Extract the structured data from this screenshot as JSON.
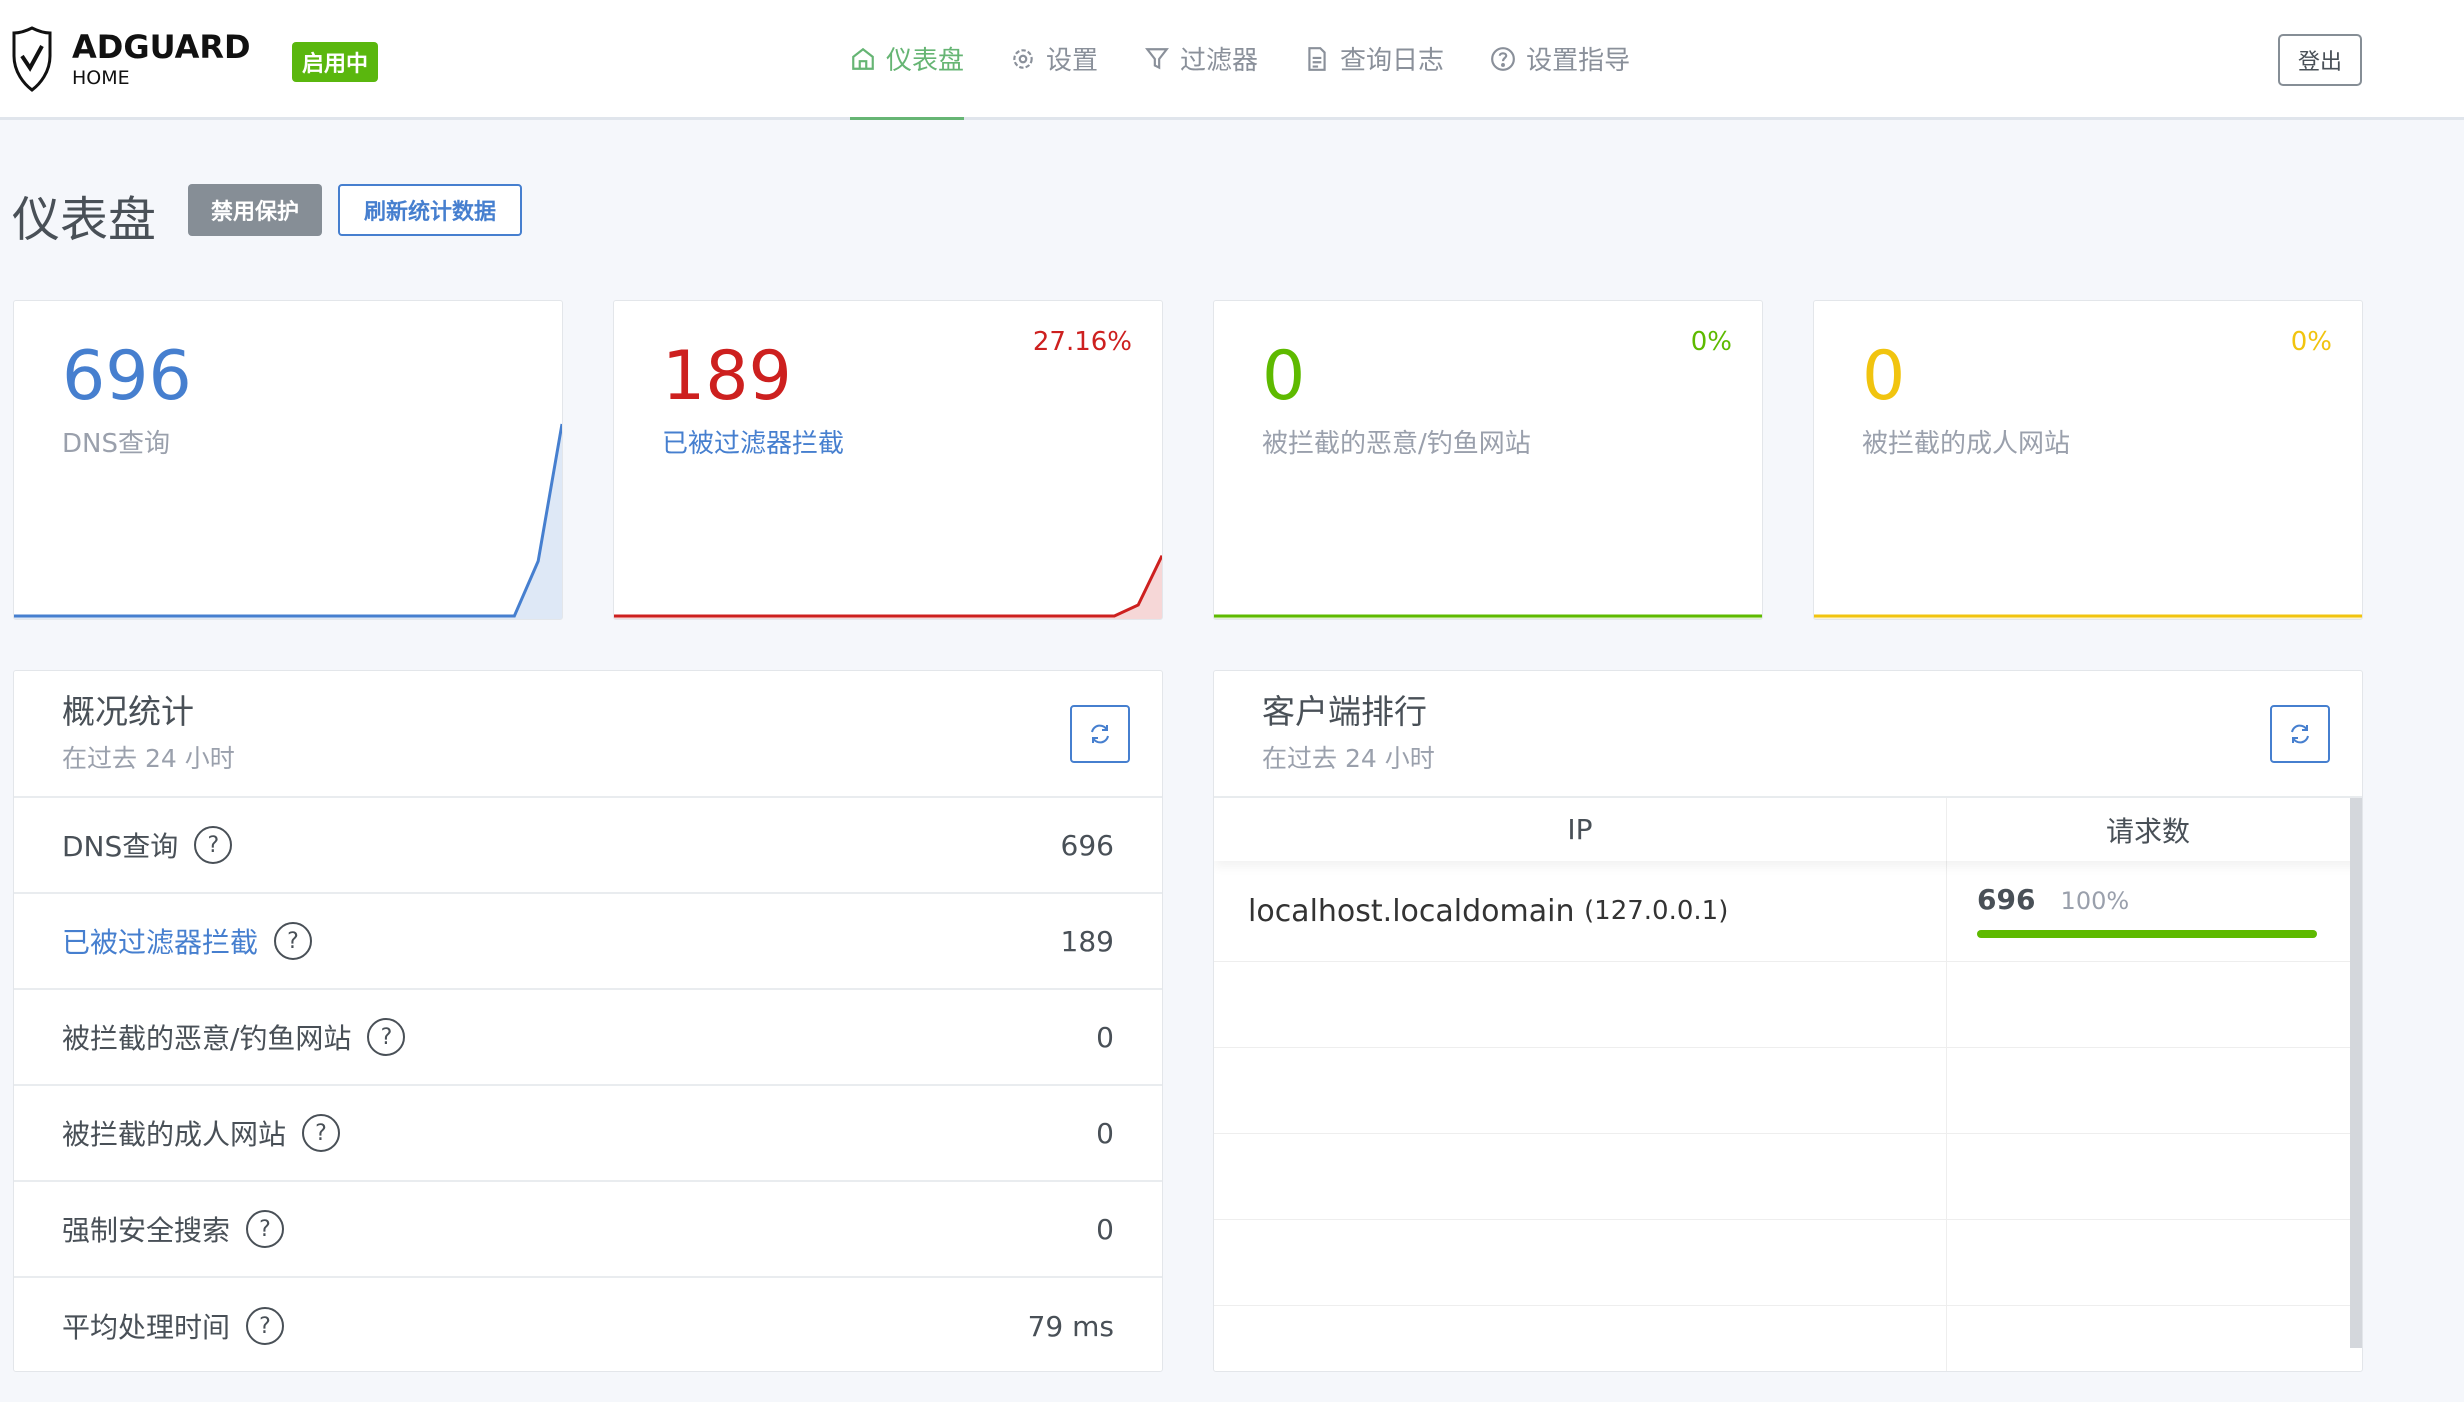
{
  "header": {
    "brand": "ADGUARD",
    "brand_sub": "HOME",
    "status_badge": "启用中",
    "logout": "登出",
    "nav": [
      {
        "label": "仪表盘",
        "icon": "home-icon"
      },
      {
        "label": "设置",
        "icon": "gear-icon"
      },
      {
        "label": "过滤器",
        "icon": "filter-icon"
      },
      {
        "label": "查询日志",
        "icon": "document-icon"
      },
      {
        "label": "设置指导",
        "icon": "help-circle-icon"
      }
    ]
  },
  "page": {
    "title": "仪表盘",
    "disable_protection": "禁用保护",
    "refresh_stats": "刷新统计数据"
  },
  "cards": [
    {
      "value": "696",
      "label": "DNS查询",
      "percent": "",
      "color": "#467fcf",
      "spark": [
        0,
        0,
        0,
        0,
        0,
        0,
        0,
        0,
        0,
        0,
        0,
        0,
        0,
        0,
        0,
        0,
        0,
        0,
        0,
        0,
        0,
        0,
        50,
        175
      ]
    },
    {
      "value": "189",
      "label": "已被过滤器拦截",
      "percent": "27.16%",
      "color": "#cd201f",
      "spark": [
        0,
        0,
        0,
        0,
        0,
        0,
        0,
        0,
        0,
        0,
        0,
        0,
        0,
        0,
        0,
        0,
        0,
        0,
        0,
        0,
        0,
        0,
        10,
        55
      ]
    },
    {
      "value": "0",
      "label": "被拦截的恶意/钓鱼网站",
      "percent": "0%",
      "color": "#5eba00",
      "spark": [
        0,
        0,
        0,
        0,
        0,
        0,
        0,
        0,
        0,
        0,
        0,
        0,
        0,
        0,
        0,
        0,
        0,
        0,
        0,
        0,
        0,
        0,
        0,
        0
      ]
    },
    {
      "value": "0",
      "label": "被拦截的成人网站",
      "percent": "0%",
      "color": "#f1c40f",
      "spark": [
        0,
        0,
        0,
        0,
        0,
        0,
        0,
        0,
        0,
        0,
        0,
        0,
        0,
        0,
        0,
        0,
        0,
        0,
        0,
        0,
        0,
        0,
        0,
        0
      ]
    }
  ],
  "stats": {
    "title": "概况统计",
    "subtitle": "在过去 24 小时",
    "rows": [
      {
        "label": "DNS查询",
        "value": "696"
      },
      {
        "label": "已被过滤器拦截",
        "value": "189"
      },
      {
        "label": "被拦截的恶意/钓鱼网站",
        "value": "0"
      },
      {
        "label": "被拦截的成人网站",
        "value": "0"
      },
      {
        "label": "强制安全搜索",
        "value": "0"
      },
      {
        "label": "平均处理时间",
        "value": "79 ms"
      }
    ],
    "help": "?"
  },
  "clients": {
    "title": "客户端排行",
    "subtitle": "在过去 24 小时",
    "col_ip": "IP",
    "col_requests": "请求数",
    "rows": [
      {
        "name": "localhost.localdomain",
        "ip": "(127.0.0.1)",
        "count": "696",
        "percent": "100%",
        "fill": 100
      }
    ]
  },
  "colors": {
    "accent": "#66b574",
    "primary": "#467fcf",
    "danger": "#cd201f",
    "success": "#5eba00"
  }
}
